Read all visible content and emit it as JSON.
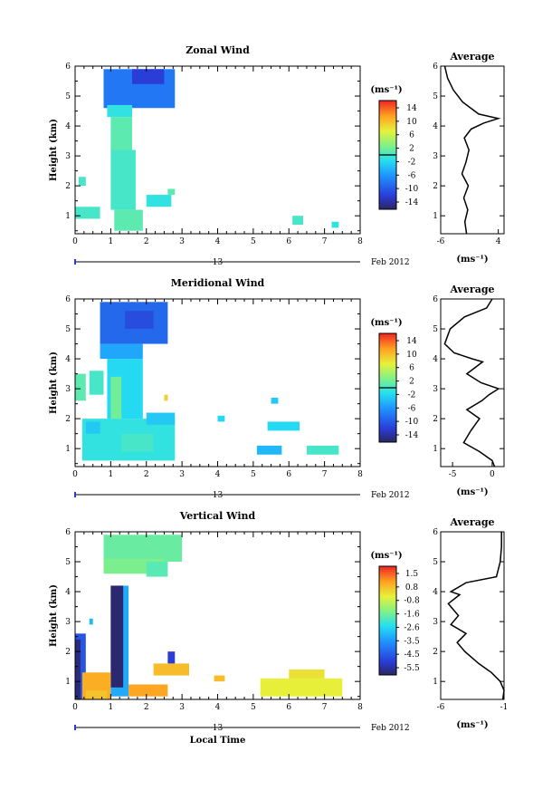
{
  "chart_data": [
    {
      "type": "heatmap",
      "title": "Zonal Wind",
      "ylabel": "Height (km)",
      "xlabel": "",
      "x_ticks": [
        "0",
        "1",
        "2",
        "3",
        "4",
        "5",
        "6",
        "7",
        "8"
      ],
      "y_ticks": [
        "1",
        "2",
        "3",
        "4",
        "5",
        "6"
      ],
      "xlim": [
        0,
        8
      ],
      "ylim": [
        0.4,
        6
      ],
      "date_label": "Feb 2012",
      "date_marker": "13",
      "colorbar": {
        "unit": "(ms⁻¹)",
        "ticks": [
          "14",
          "10",
          "6",
          "2",
          "-2",
          "-6",
          "-10",
          "-14"
        ],
        "range": [
          -16,
          16
        ],
        "contour_level": 0
      },
      "cells": [
        {
          "x": [
            0.8,
            2.8
          ],
          "y": [
            4.6,
            5.9
          ],
          "value": -8
        },
        {
          "x": [
            1.6,
            2.5
          ],
          "y": [
            5.4,
            5.9
          ],
          "value": -12
        },
        {
          "x": [
            0.9,
            1.6
          ],
          "y": [
            4.3,
            4.7
          ],
          "value": -1
        },
        {
          "x": [
            1.0,
            1.6
          ],
          "y": [
            3.2,
            4.3
          ],
          "value": 1
        },
        {
          "x": [
            1.0,
            1.7
          ],
          "y": [
            1.2,
            3.2
          ],
          "value": 0
        },
        {
          "x": [
            1.1,
            1.9
          ],
          "y": [
            0.5,
            1.2
          ],
          "value": 1
        },
        {
          "x": [
            0.0,
            0.7
          ],
          "y": [
            0.9,
            1.3
          ],
          "value": 0
        },
        {
          "x": [
            2.0,
            2.7
          ],
          "y": [
            1.3,
            1.7
          ],
          "value": -1
        },
        {
          "x": [
            0.1,
            0.3
          ],
          "y": [
            2.0,
            2.3
          ],
          "value": 0
        },
        {
          "x": [
            2.6,
            2.8
          ],
          "y": [
            1.7,
            1.9
          ],
          "value": 1
        },
        {
          "x": [
            6.1,
            6.4
          ],
          "y": [
            0.7,
            1.0
          ],
          "value": 0
        },
        {
          "x": [
            7.2,
            7.4
          ],
          "y": [
            0.6,
            0.8
          ],
          "value": -1
        }
      ],
      "average": {
        "title": "Average",
        "xlabel": "(ms⁻¹)",
        "x_ticks": [
          "-6",
          "4"
        ],
        "xlim": [
          -6,
          5
        ],
        "profile": [
          [
            -1.5,
            0.4
          ],
          [
            -1.8,
            0.8
          ],
          [
            -1.3,
            1.2
          ],
          [
            -2.0,
            1.6
          ],
          [
            -1.2,
            2.0
          ],
          [
            -2.3,
            2.4
          ],
          [
            -1.6,
            2.8
          ],
          [
            -1.1,
            3.2
          ],
          [
            -1.9,
            3.6
          ],
          [
            -0.7,
            3.9
          ],
          [
            1.5,
            4.1
          ],
          [
            4.0,
            4.25
          ],
          [
            0.6,
            4.4
          ],
          [
            -2.2,
            4.8
          ],
          [
            -3.8,
            5.2
          ],
          [
            -4.8,
            5.6
          ],
          [
            -5.3,
            6.0
          ]
        ]
      }
    },
    {
      "type": "heatmap",
      "title": "Meridional Wind",
      "ylabel": "Height (km)",
      "xlabel": "",
      "x_ticks": [
        "0",
        "1",
        "2",
        "3",
        "4",
        "5",
        "6",
        "7",
        "8"
      ],
      "y_ticks": [
        "1",
        "2",
        "3",
        "4",
        "5",
        "6"
      ],
      "xlim": [
        0,
        8
      ],
      "ylim": [
        0.4,
        6
      ],
      "date_label": "Feb 2012",
      "date_marker": "13",
      "colorbar": {
        "unit": "(ms⁻¹)",
        "ticks": [
          "14",
          "10",
          "6",
          "2",
          "-2",
          "-6",
          "-10",
          "-14"
        ],
        "range": [
          -16,
          16
        ],
        "contour_level": 0
      },
      "cells": [
        {
          "x": [
            0.7,
            2.6
          ],
          "y": [
            4.5,
            5.9
          ],
          "value": -9
        },
        {
          "x": [
            1.4,
            2.2
          ],
          "y": [
            5.0,
            5.6
          ],
          "value": -11
        },
        {
          "x": [
            0.7,
            1.9
          ],
          "y": [
            4.0,
            4.5
          ],
          "value": -5
        },
        {
          "x": [
            0.9,
            1.9
          ],
          "y": [
            2.0,
            4.0
          ],
          "value": -2
        },
        {
          "x": [
            1.0,
            1.3
          ],
          "y": [
            2.0,
            3.4
          ],
          "value": 2
        },
        {
          "x": [
            0.0,
            0.3
          ],
          "y": [
            2.6,
            3.5
          ],
          "value": 1
        },
        {
          "x": [
            0.4,
            0.8
          ],
          "y": [
            2.8,
            3.6
          ],
          "value": 0
        },
        {
          "x": [
            0.2,
            2.8
          ],
          "y": [
            0.6,
            2.0
          ],
          "value": -1
        },
        {
          "x": [
            0.3,
            0.7
          ],
          "y": [
            1.5,
            1.9
          ],
          "value": -3
        },
        {
          "x": [
            1.3,
            2.2
          ],
          "y": [
            0.9,
            1.5
          ],
          "value": 0
        },
        {
          "x": [
            2.0,
            2.8
          ],
          "y": [
            1.8,
            2.2
          ],
          "value": -3
        },
        {
          "x": [
            2.5,
            2.6
          ],
          "y": [
            2.6,
            2.8
          ],
          "value": 9
        },
        {
          "x": [
            4.0,
            4.2
          ],
          "y": [
            1.9,
            2.1
          ],
          "value": -2
        },
        {
          "x": [
            5.1,
            5.8
          ],
          "y": [
            0.8,
            1.1
          ],
          "value": -4
        },
        {
          "x": [
            5.4,
            6.3
          ],
          "y": [
            1.6,
            1.9
          ],
          "value": -2
        },
        {
          "x": [
            6.5,
            7.4
          ],
          "y": [
            0.8,
            1.1
          ],
          "value": 0
        },
        {
          "x": [
            5.5,
            5.7
          ],
          "y": [
            2.5,
            2.7
          ],
          "value": -3
        }
      ],
      "average": {
        "title": "Average",
        "xlabel": "(ms⁻¹)",
        "x_ticks": [
          "-5",
          "0"
        ],
        "xlim": [
          -6.5,
          1.5
        ],
        "profile": [
          [
            0.3,
            0.4
          ],
          [
            0.0,
            0.6
          ],
          [
            -1.6,
            0.9
          ],
          [
            -3.6,
            1.2
          ],
          [
            -2.7,
            1.6
          ],
          [
            -1.6,
            2.0
          ],
          [
            -3.2,
            2.3
          ],
          [
            -1.3,
            2.6
          ],
          [
            -0.4,
            2.8
          ],
          [
            0.8,
            3.0
          ],
          [
            -1.4,
            3.2
          ],
          [
            -3.2,
            3.5
          ],
          [
            -1.2,
            3.9
          ],
          [
            -2.5,
            4.0
          ],
          [
            -4.8,
            4.2
          ],
          [
            -6.0,
            4.5
          ],
          [
            -5.3,
            5.0
          ],
          [
            -3.5,
            5.4
          ],
          [
            -0.7,
            5.7
          ],
          [
            0.0,
            6.0
          ]
        ]
      }
    },
    {
      "type": "heatmap",
      "title": "Vertical Wind",
      "ylabel": "Height (km)",
      "xlabel": "Local Time",
      "x_ticks": [
        "0",
        "1",
        "2",
        "3",
        "4",
        "5",
        "6",
        "7",
        "8"
      ],
      "y_ticks": [
        "1",
        "2",
        "3",
        "4",
        "5",
        "6"
      ],
      "xlim": [
        0,
        8
      ],
      "ylim": [
        0.4,
        6
      ],
      "date_label": "Feb 2012",
      "date_marker": "13",
      "colorbar": {
        "unit": "(ms⁻¹)",
        "ticks": [
          "1.5",
          "0.8",
          "-0.8",
          "-1.6",
          "-2.6",
          "-3.5",
          "-4.5",
          "-5.5"
        ],
        "range": [
          -6,
          2
        ],
        "contour_level": null
      },
      "cells": [
        {
          "x": [
            0.8,
            3.0
          ],
          "y": [
            5.0,
            5.9
          ],
          "value": -1.6
        },
        {
          "x": [
            0.8,
            2.5
          ],
          "y": [
            4.6,
            5.1
          ],
          "value": -1.4
        },
        {
          "x": [
            2.0,
            2.6
          ],
          "y": [
            4.5,
            5.0
          ],
          "value": -1.8
        },
        {
          "x": [
            1.0,
            1.5
          ],
          "y": [
            0.5,
            4.2
          ],
          "value": -3.2
        },
        {
          "x": [
            1.0,
            1.35
          ],
          "y": [
            0.8,
            4.2
          ],
          "value": -5.9
        },
        {
          "x": [
            0.0,
            0.3
          ],
          "y": [
            0.4,
            2.6
          ],
          "value": -4.6
        },
        {
          "x": [
            0.0,
            0.15
          ],
          "y": [
            0.4,
            2.4
          ],
          "value": -5.8
        },
        {
          "x": [
            0.2,
            1.0
          ],
          "y": [
            0.4,
            1.3
          ],
          "value": 0.7
        },
        {
          "x": [
            0.3,
            0.9
          ],
          "y": [
            0.4,
            0.7
          ],
          "value": 0.4
        },
        {
          "x": [
            1.5,
            2.6
          ],
          "y": [
            0.5,
            0.9
          ],
          "value": 0.8
        },
        {
          "x": [
            2.2,
            3.2
          ],
          "y": [
            1.2,
            1.6
          ],
          "value": 0.5
        },
        {
          "x": [
            2.6,
            2.8
          ],
          "y": [
            1.6,
            2.0
          ],
          "value": -5.0
        },
        {
          "x": [
            3.9,
            4.2
          ],
          "y": [
            1.0,
            1.2
          ],
          "value": 0.5
        },
        {
          "x": [
            5.2,
            7.5
          ],
          "y": [
            0.5,
            1.1
          ],
          "value": -0.2
        },
        {
          "x": [
            6.0,
            7.0
          ],
          "y": [
            1.1,
            1.4
          ],
          "value": 0.0
        },
        {
          "x": [
            0.4,
            0.5
          ],
          "y": [
            2.9,
            3.1
          ],
          "value": -3.0
        }
      ],
      "average": {
        "title": "Average",
        "xlabel": "(ms⁻¹)",
        "x_ticks": [
          "-6",
          "-1"
        ],
        "xlim": [
          -6,
          -1
        ],
        "profile": [
          [
            -1.1,
            0.4
          ],
          [
            -1.0,
            0.7
          ],
          [
            -1.3,
            1.0
          ],
          [
            -2.0,
            1.3
          ],
          [
            -3.0,
            1.6
          ],
          [
            -4.1,
            2.0
          ],
          [
            -4.7,
            2.3
          ],
          [
            -4.0,
            2.6
          ],
          [
            -5.2,
            2.9
          ],
          [
            -4.6,
            3.2
          ],
          [
            -5.4,
            3.6
          ],
          [
            -4.5,
            3.9
          ],
          [
            -5.2,
            4.0
          ],
          [
            -4.0,
            4.3
          ],
          [
            -1.6,
            4.5
          ],
          [
            -1.3,
            5.0
          ],
          [
            -1.2,
            5.5
          ],
          [
            -1.2,
            6.0
          ]
        ]
      }
    }
  ]
}
